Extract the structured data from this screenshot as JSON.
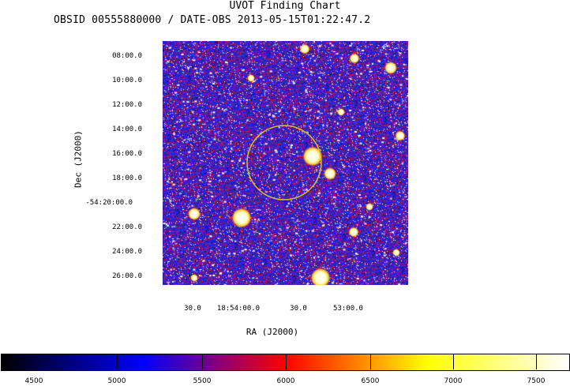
{
  "header": {
    "title": "UVOT Finding Chart",
    "subtitle": "OBSID 00555880000 / DATE-OBS 2013-05-15T01:22:47.2"
  },
  "axes": {
    "x_label": "RA (J2000)",
    "y_label": "Dec (J2000)",
    "dec_ticks": [
      "08:00.0",
      "10:00.0",
      "12:00.0",
      "14:00.0",
      "16:00.0",
      "18:00.0",
      "-54:20:00.0",
      "22:00.0",
      "24:00.0",
      "26:00.0"
    ],
    "ra_ticks": [
      "30.0",
      "18:54:00.0",
      "30.0",
      "53:00.0"
    ]
  },
  "colorbar": {
    "ticks": [
      "4500",
      "5000",
      "5500",
      "6000",
      "6500",
      "7000",
      "7500"
    ],
    "colors": [
      "#000000",
      "#0000ff",
      "#ff0000",
      "#ffff00",
      "#ffffff"
    ]
  },
  "colors": {
    "image_background": "#2a1fa8",
    "circle": "#e0c020",
    "star_marker": "#ff2200"
  }
}
